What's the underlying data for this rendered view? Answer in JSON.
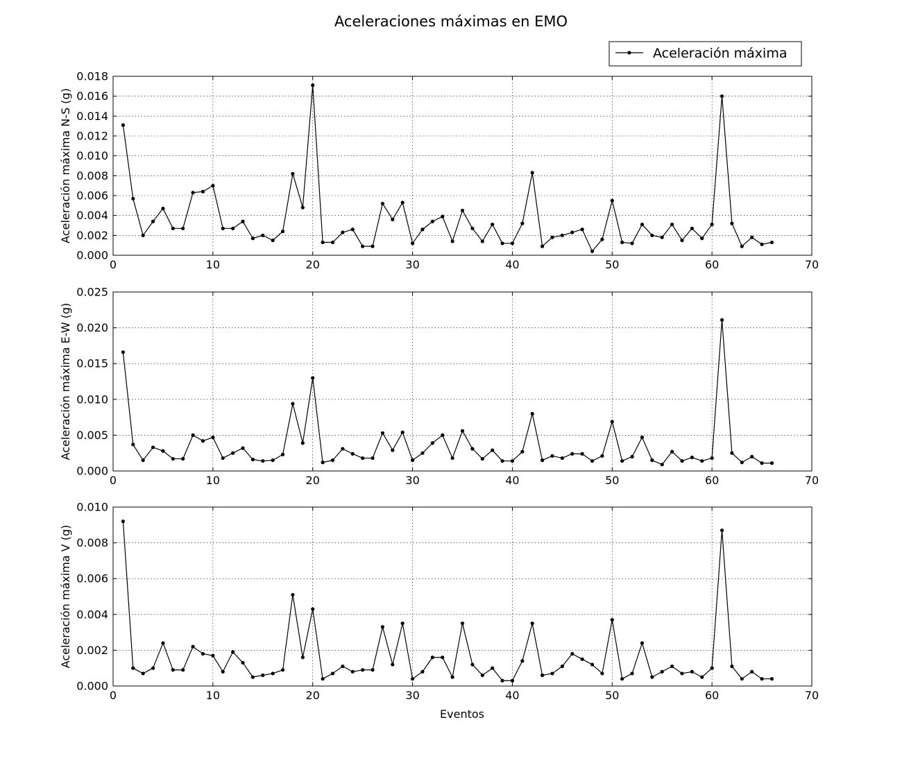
{
  "chart_data": {
    "type": "line",
    "title": "Aceleraciones máximas en EMO",
    "xlabel": "Eventos",
    "xlim": [
      0,
      70
    ],
    "xticks": [
      0,
      10,
      20,
      30,
      40,
      50,
      60,
      70
    ],
    "grid": true,
    "legend": {
      "position": "top-right",
      "label": "Aceleración máxima"
    },
    "x": [
      1,
      2,
      3,
      4,
      5,
      6,
      7,
      8,
      9,
      10,
      11,
      12,
      13,
      14,
      15,
      16,
      17,
      18,
      19,
      20,
      21,
      22,
      23,
      24,
      25,
      26,
      27,
      28,
      29,
      30,
      31,
      32,
      33,
      34,
      35,
      36,
      37,
      38,
      39,
      40,
      41,
      42,
      43,
      44,
      45,
      46,
      47,
      48,
      49,
      50,
      51,
      52,
      53,
      54,
      55,
      56,
      57,
      58,
      59,
      60,
      61,
      62,
      63,
      64,
      65,
      66
    ],
    "subplots": [
      {
        "ylabel": "Aceleración máxima N-S (g)",
        "ylim": [
          0,
          0.018
        ],
        "yticks": [
          "0.000",
          "0.002",
          "0.004",
          "0.006",
          "0.008",
          "0.010",
          "0.012",
          "0.014",
          "0.016",
          "0.018"
        ],
        "series": [
          {
            "name": "Aceleración máxima",
            "values": [
              0.0131,
              0.0057,
              0.002,
              0.0034,
              0.0047,
              0.0027,
              0.0027,
              0.0063,
              0.0064,
              0.007,
              0.0027,
              0.0027,
              0.0034,
              0.0017,
              0.002,
              0.0015,
              0.0024,
              0.0082,
              0.0048,
              0.0171,
              0.0013,
              0.0013,
              0.0023,
              0.0026,
              0.0009,
              0.0009,
              0.0052,
              0.0036,
              0.0053,
              0.0012,
              0.0026,
              0.0034,
              0.0039,
              0.0014,
              0.0045,
              0.0027,
              0.0014,
              0.0031,
              0.0012,
              0.0012,
              0.0032,
              0.0083,
              0.0009,
              0.0018,
              0.002,
              0.0023,
              0.0026,
              0.0004,
              0.0016,
              0.0055,
              0.0013,
              0.0012,
              0.0031,
              0.002,
              0.0018,
              0.0031,
              0.0015,
              0.0027,
              0.0017,
              0.0031,
              0.016,
              0.0032,
              0.0009,
              0.0018,
              0.0011,
              0.0013
            ]
          }
        ]
      },
      {
        "ylabel": "Aceleración máxima E-W (g)",
        "ylim": [
          0,
          0.025
        ],
        "yticks": [
          "0.000",
          "0.005",
          "0.010",
          "0.015",
          "0.020",
          "0.025"
        ],
        "series": [
          {
            "name": "Aceleración máxima",
            "values": [
              0.0166,
              0.0037,
              0.0015,
              0.0033,
              0.0028,
              0.0017,
              0.0017,
              0.005,
              0.0042,
              0.0047,
              0.0018,
              0.0025,
              0.0032,
              0.0016,
              0.0014,
              0.0015,
              0.0023,
              0.0094,
              0.0039,
              0.013,
              0.0012,
              0.0015,
              0.0031,
              0.0024,
              0.0018,
              0.0018,
              0.0053,
              0.0029,
              0.0054,
              0.0015,
              0.0025,
              0.0039,
              0.005,
              0.0018,
              0.0056,
              0.0031,
              0.0017,
              0.0029,
              0.0014,
              0.0014,
              0.0027,
              0.008,
              0.0015,
              0.0021,
              0.0018,
              0.0024,
              0.0024,
              0.0014,
              0.0021,
              0.0069,
              0.0014,
              0.002,
              0.0047,
              0.0015,
              0.0009,
              0.0027,
              0.0014,
              0.0019,
              0.0014,
              0.0018,
              0.0211,
              0.0025,
              0.0012,
              0.002,
              0.0011,
              0.0011
            ]
          }
        ]
      },
      {
        "ylabel": "Aceleración máxima V (g)",
        "ylim": [
          0,
          0.01
        ],
        "yticks": [
          "0.000",
          "0.002",
          "0.004",
          "0.006",
          "0.008",
          "0.010"
        ],
        "series": [
          {
            "name": "Aceleración máxima",
            "values": [
              0.0092,
              0.001,
              0.0007,
              0.001,
              0.0024,
              0.0009,
              0.0009,
              0.0022,
              0.0018,
              0.0017,
              0.0008,
              0.0019,
              0.0013,
              0.0005,
              0.0006,
              0.0007,
              0.0009,
              0.0051,
              0.0016,
              0.0043,
              0.0004,
              0.0007,
              0.0011,
              0.0008,
              0.0009,
              0.0009,
              0.0033,
              0.0012,
              0.0035,
              0.0004,
              0.0008,
              0.0016,
              0.0016,
              0.0005,
              0.0035,
              0.0012,
              0.0006,
              0.001,
              0.0003,
              0.0003,
              0.0014,
              0.0035,
              0.0006,
              0.0007,
              0.0011,
              0.0018,
              0.0015,
              0.0012,
              0.0007,
              0.0037,
              0.0004,
              0.0007,
              0.0024,
              0.0005,
              0.0008,
              0.0011,
              0.0007,
              0.0008,
              0.0005,
              0.001,
              0.0087,
              0.0011,
              0.0004,
              0.0008,
              0.0004,
              0.0004
            ]
          }
        ]
      }
    ]
  }
}
